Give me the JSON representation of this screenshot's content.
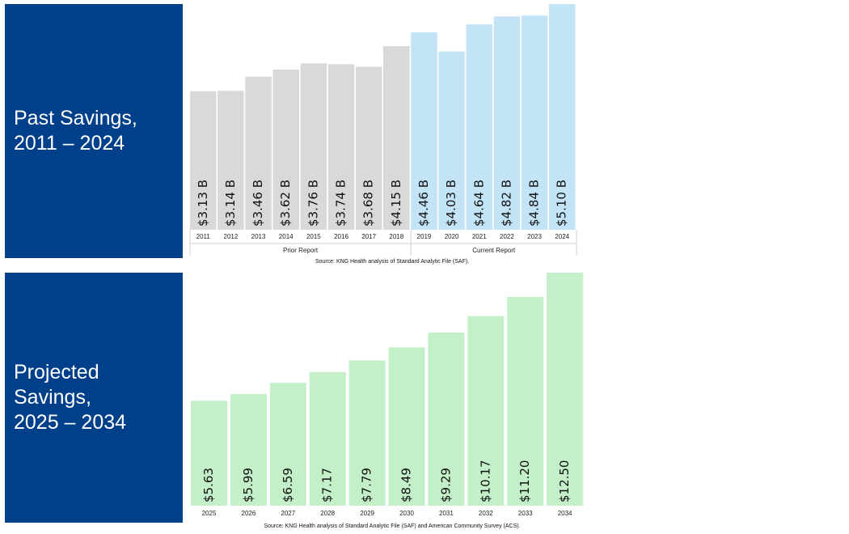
{
  "past": {
    "panel_title": "Past Savings,\n2011 – 2024",
    "source": "Source: KNG Health analysis of Standard Analytic File (SAF).",
    "chart_data": {
      "type": "bar",
      "categories": [
        "2011",
        "2012",
        "2013",
        "2014",
        "2015",
        "2016",
        "2017",
        "2018",
        "2019",
        "2020",
        "2021",
        "2022",
        "2023",
        "2024"
      ],
      "values": [
        3.13,
        3.14,
        3.46,
        3.62,
        3.76,
        3.74,
        3.68,
        4.15,
        4.46,
        4.03,
        4.64,
        4.82,
        4.84,
        5.1
      ],
      "data_labels": [
        "$3.13 B",
        "$3.14 B",
        "$3.46 B",
        "$3.62 B",
        "$3.76 B",
        "$3.74 B",
        "$3.68 B",
        "$4.15 B",
        "$4.46 B",
        "$4.03 B",
        "$4.64 B",
        "$4.82 B",
        "$4.84 B",
        "$5.10 B"
      ],
      "groups": [
        {
          "label": "Prior Report",
          "color": "#d9d9d9",
          "categories": [
            "2011",
            "2012",
            "2013",
            "2014",
            "2015",
            "2016",
            "2017",
            "2018"
          ]
        },
        {
          "label": "Current Report",
          "color": "#c3e4f6",
          "categories": [
            "2019",
            "2020",
            "2021",
            "2022",
            "2023",
            "2024"
          ]
        }
      ],
      "ylim": [
        0,
        5.1
      ],
      "grid": false
    }
  },
  "projected": {
    "panel_title": "Projected\nSavings,\n2025 – 2034",
    "source": "Source: KNG Health analysis of Standard Analytic File (SAF) and American Community Survey (ACS).",
    "chart_data": {
      "type": "bar",
      "categories": [
        "2025",
        "2026",
        "2027",
        "2028",
        "2029",
        "2030",
        "2031",
        "2032",
        "2033",
        "2034"
      ],
      "values": [
        5.63,
        5.99,
        6.59,
        7.17,
        7.79,
        8.49,
        9.29,
        10.17,
        11.2,
        12.5
      ],
      "data_labels": [
        "$5.63",
        "$5.99",
        "$6.59",
        "$7.17",
        "$7.79",
        "$8.49",
        "$9.29",
        "$10.17",
        "$11.20",
        "$12.50"
      ],
      "color": "#c3f0c8",
      "ylim": [
        0,
        12.5
      ],
      "grid": false
    }
  }
}
